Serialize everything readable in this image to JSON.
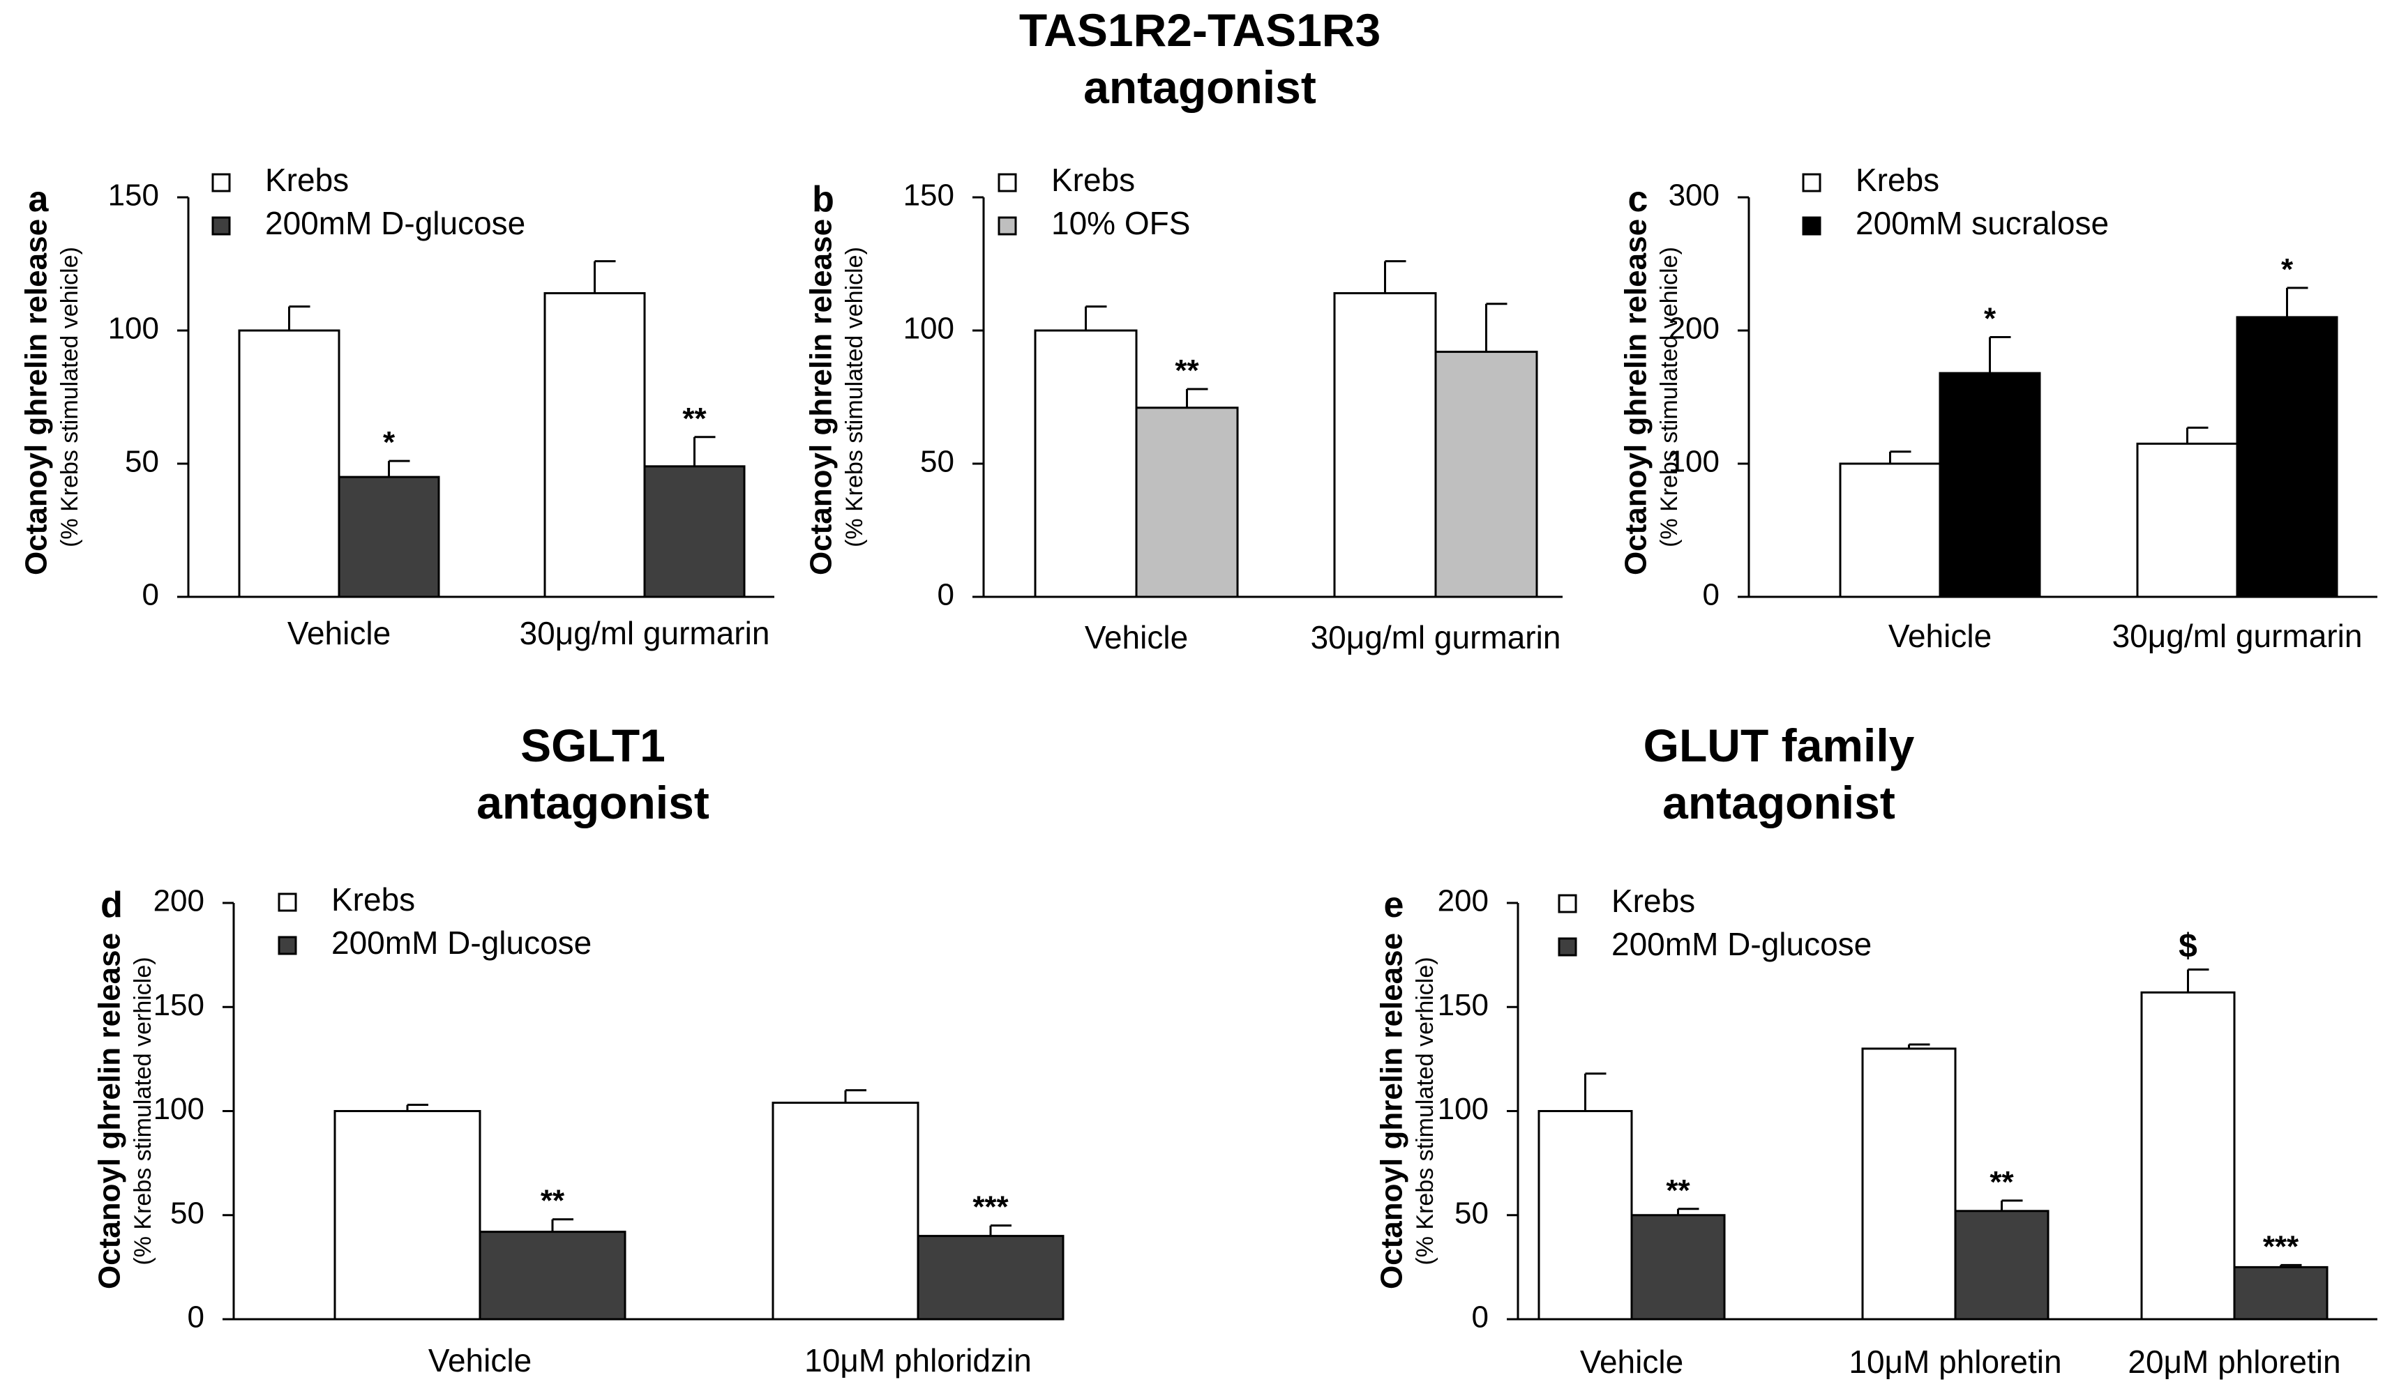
{
  "headings": {
    "top": {
      "line1": "TAS1R2-TAS1R3",
      "line2": "antagonist"
    },
    "sglt1": {
      "line1": "SGLT1",
      "line2": "antagonist"
    },
    "glut": {
      "line1": "GLUT family",
      "line2": "antagonist"
    }
  },
  "colors": {
    "krebs": "#ffffff",
    "d_glucose": "#3f3f3f",
    "ofs": "#bfbfbf",
    "sucralose": "#000000"
  },
  "chart_data": [
    {
      "id": "a",
      "type": "bar",
      "panel_letter": "a",
      "ylabel": "Octanoyl ghrelin release",
      "ylabel_sub": "(% Krebs stimulated vehicle)",
      "ylim": [
        0,
        150
      ],
      "yticks": [
        0,
        50,
        100,
        150
      ],
      "categories": [
        "Vehicle",
        "30μg/ml gurmarin"
      ],
      "series": [
        {
          "name": "Krebs",
          "color": "#ffffff",
          "values": [
            100,
            114
          ],
          "errors": [
            9,
            12
          ],
          "annotations": [
            "",
            ""
          ]
        },
        {
          "name": "200mM D-glucose",
          "color": "#3f3f3f",
          "values": [
            45,
            49
          ],
          "errors": [
            6,
            11
          ],
          "annotations": [
            "*",
            "**"
          ]
        }
      ]
    },
    {
      "id": "b",
      "type": "bar",
      "panel_letter": "b",
      "ylabel": "Octanoyl ghrelin release",
      "ylabel_sub": "(% Krebs stimulated vehicle)",
      "ylim": [
        0,
        150
      ],
      "yticks": [
        0,
        50,
        100,
        150
      ],
      "categories": [
        "Vehicle",
        "30μg/ml gurmarin"
      ],
      "series": [
        {
          "name": "Krebs",
          "color": "#ffffff",
          "values": [
            100,
            114
          ],
          "errors": [
            9,
            12
          ],
          "annotations": [
            "",
            ""
          ]
        },
        {
          "name": "10% OFS",
          "color": "#bfbfbf",
          "values": [
            71,
            92
          ],
          "errors": [
            7,
            18
          ],
          "annotations": [
            "**",
            ""
          ]
        }
      ]
    },
    {
      "id": "c",
      "type": "bar",
      "panel_letter": "c",
      "ylabel": "Octanoyl ghrelin release",
      "ylabel_sub": "(% Krebs stimulated vehicle)",
      "ylim": [
        0,
        300
      ],
      "yticks": [
        0,
        100,
        200,
        300
      ],
      "categories": [
        "Vehicle",
        "30μg/ml gurmarin"
      ],
      "series": [
        {
          "name": "Krebs",
          "color": "#ffffff",
          "values": [
            100,
            115
          ],
          "errors": [
            9,
            12
          ],
          "annotations": [
            "",
            ""
          ]
        },
        {
          "name": "200mM sucralose",
          "color": "#000000",
          "values": [
            168,
            210
          ],
          "errors": [
            27,
            22
          ],
          "annotations": [
            "*",
            "*"
          ]
        }
      ]
    },
    {
      "id": "d",
      "type": "bar",
      "panel_letter": "d",
      "ylabel": "Octanoyl ghrelin release",
      "ylabel_sub": "(% Krebs stimulated verhicle)",
      "ylim": [
        0,
        200
      ],
      "yticks": [
        0,
        50,
        100,
        150,
        200
      ],
      "categories": [
        "Vehicle",
        "10μM  phloridzin"
      ],
      "series": [
        {
          "name": "Krebs",
          "color": "#ffffff",
          "values": [
            100,
            104
          ],
          "errors": [
            3,
            6
          ],
          "annotations": [
            "",
            ""
          ]
        },
        {
          "name": "200mM D-glucose",
          "color": "#3f3f3f",
          "values": [
            42,
            40
          ],
          "errors": [
            6,
            5
          ],
          "annotations": [
            "**",
            "***"
          ]
        }
      ]
    },
    {
      "id": "e",
      "type": "bar",
      "panel_letter": "e",
      "ylabel": "Octanoyl ghrelin release",
      "ylabel_sub": "(% Krebs stimulated verhicle)",
      "ylim": [
        0,
        200
      ],
      "yticks": [
        0,
        50,
        100,
        150,
        200
      ],
      "categories": [
        "Vehicle",
        "10μM  phloretin",
        "20μM  phloretin"
      ],
      "series": [
        {
          "name": "Krebs",
          "color": "#ffffff",
          "values": [
            100,
            130,
            157
          ],
          "errors": [
            18,
            2,
            11
          ],
          "annotations": [
            "",
            "",
            "$"
          ]
        },
        {
          "name": "200mM D-glucose",
          "color": "#3f3f3f",
          "values": [
            50,
            52,
            25
          ],
          "errors": [
            3,
            5,
            1
          ],
          "annotations": [
            "**",
            "**",
            "***"
          ]
        }
      ]
    }
  ]
}
